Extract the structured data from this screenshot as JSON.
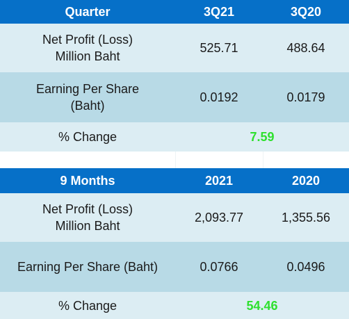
{
  "quarter_table": {
    "header": {
      "label": "Quarter",
      "col1": "3Q21",
      "col2": "3Q20"
    },
    "rows": [
      {
        "label_line1": "Net Profit (Loss)",
        "label_line2": "Million Baht",
        "v1": "525.71",
        "v2": "488.64"
      },
      {
        "label_line1": "Earning Per Share",
        "label_line2": "(Baht)",
        "v1": "0.0192",
        "v2": "0.0179"
      }
    ],
    "change": {
      "label": "% Change",
      "value": "7.59"
    }
  },
  "nine_months_table": {
    "header": {
      "label": "9 Months",
      "col1": "2021",
      "col2": "2020"
    },
    "rows": [
      {
        "label_line1": "Net Profit (Loss)",
        "label_line2": "Million Baht",
        "v1": "2,093.77",
        "v2": "1,355.56"
      },
      {
        "label_line1": "Earning Per Share (Baht)",
        "label_line2": "",
        "v1": "0.0766",
        "v2": "0.0496"
      }
    ],
    "change": {
      "label": "% Change",
      "value": "54.46"
    }
  },
  "colors": {
    "header_bg": "#0670c8",
    "row_light": "#dcedf3",
    "row_mid": "#b8dae6",
    "change_value": "#2ee02e"
  }
}
